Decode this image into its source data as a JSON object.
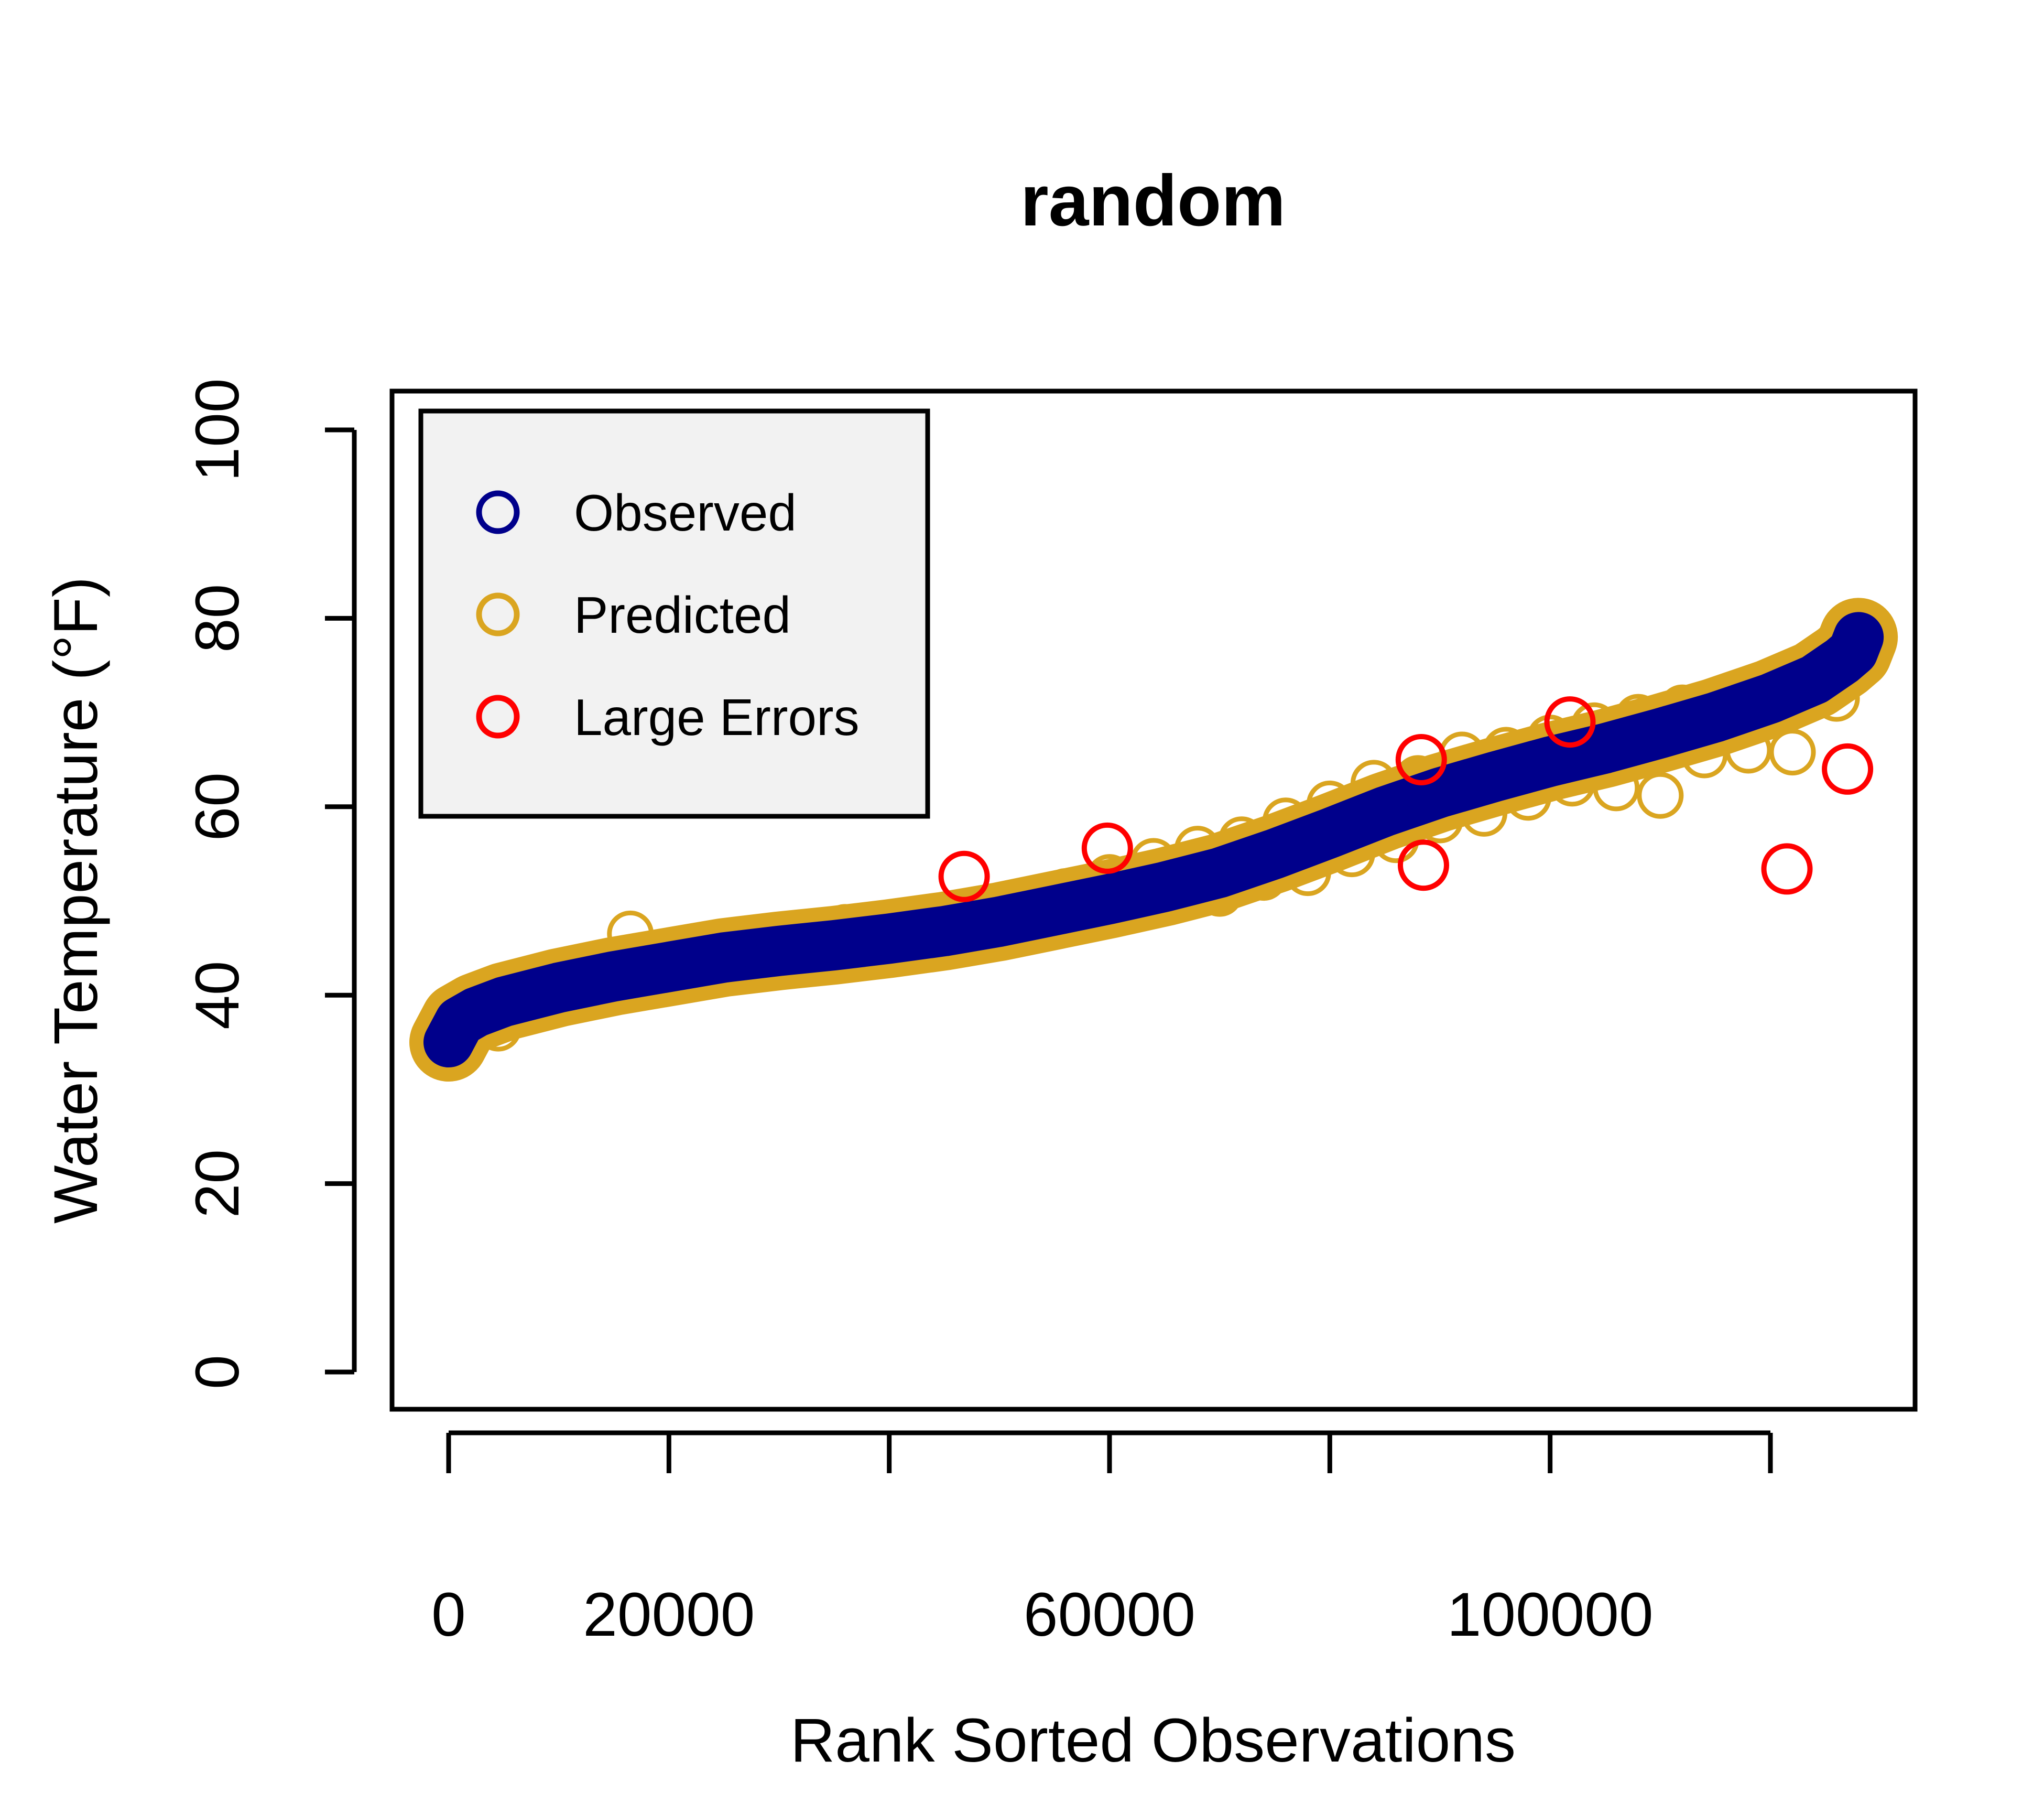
{
  "chart_data": {
    "type": "scatter",
    "title": "random",
    "xlabel": "Rank Sorted Observations",
    "ylabel": "Water Temperature (°F)",
    "xlim": [
      0,
      130000
    ],
    "ylim": [
      0,
      100
    ],
    "x_ticks": [
      0,
      20000,
      40000,
      60000,
      80000,
      100000,
      120000
    ],
    "x_tick_labels": [
      "0",
      "20000",
      "",
      "60000",
      "",
      "100000",
      ""
    ],
    "y_ticks": [
      0,
      20,
      40,
      60,
      80,
      100
    ],
    "y_tick_labels": [
      "0",
      "20",
      "40",
      "60",
      "80",
      "100"
    ],
    "grid": false,
    "legend_position": "top-left",
    "colors": {
      "observed": "#00008B",
      "predicted": "#DAA520",
      "large_errors": "#FF0000"
    },
    "series": [
      {
        "name": "Observed",
        "marker": "filled-circle-line",
        "points": [
          [
            0,
            35
          ],
          [
            1000,
            37.2
          ],
          [
            2500,
            38.2
          ],
          [
            5000,
            39.3
          ],
          [
            10000,
            40.8
          ],
          [
            15000,
            42.0
          ],
          [
            20000,
            43.0
          ],
          [
            25000,
            44.0
          ],
          [
            30000,
            44.7
          ],
          [
            35000,
            45.3
          ],
          [
            40000,
            46.0
          ],
          [
            45000,
            46.8
          ],
          [
            50000,
            47.8
          ],
          [
            55000,
            49.0
          ],
          [
            60000,
            50.2
          ],
          [
            65000,
            51.5
          ],
          [
            70000,
            53.0
          ],
          [
            75000,
            55.0
          ],
          [
            80000,
            57.2
          ],
          [
            85000,
            59.5
          ],
          [
            90000,
            61.5
          ],
          [
            95000,
            63.2
          ],
          [
            100000,
            64.8
          ],
          [
            105000,
            66.2
          ],
          [
            110000,
            67.8
          ],
          [
            115000,
            69.5
          ],
          [
            120000,
            71.5
          ],
          [
            124000,
            73.5
          ],
          [
            126500,
            75.5
          ],
          [
            127500,
            76.5
          ],
          [
            128000,
            78
          ]
        ]
      },
      {
        "name": "Predicted",
        "marker": "open-circle",
        "points": [
          [
            300,
            38.0
          ],
          [
            1500,
            38.8
          ],
          [
            3000,
            39.5
          ],
          [
            4500,
            36.5
          ],
          [
            6000,
            40.8
          ],
          [
            8000,
            41.0
          ],
          [
            9000,
            42.2
          ],
          [
            11000,
            40.6
          ],
          [
            13000,
            42.8
          ],
          [
            15000,
            41.2
          ],
          [
            16500,
            46.5
          ],
          [
            18000,
            42.4
          ],
          [
            20000,
            44.3
          ],
          [
            22000,
            42.6
          ],
          [
            24000,
            45.2
          ],
          [
            26000,
            43.4
          ],
          [
            28000,
            46.0
          ],
          [
            30000,
            43.6
          ],
          [
            32000,
            46.2
          ],
          [
            34000,
            43.8
          ],
          [
            36000,
            47.2
          ],
          [
            38000,
            44.3
          ],
          [
            40000,
            47.0
          ],
          [
            42000,
            45.0
          ],
          [
            44000,
            48.0
          ],
          [
            46000,
            45.7
          ],
          [
            48000,
            48.8
          ],
          [
            50000,
            46.6
          ],
          [
            52000,
            50.0
          ],
          [
            54000,
            47.2
          ],
          [
            56000,
            51.0
          ],
          [
            58000,
            48.3
          ],
          [
            60000,
            52.5
          ],
          [
            62000,
            49.0
          ],
          [
            64000,
            54.2
          ],
          [
            66000,
            50.2
          ],
          [
            68000,
            55.5
          ],
          [
            70000,
            50.8
          ],
          [
            72000,
            56.5
          ],
          [
            74000,
            52.5
          ],
          [
            76000,
            58.5
          ],
          [
            78000,
            53.0
          ],
          [
            80000,
            60.3
          ],
          [
            82000,
            55.0
          ],
          [
            84000,
            62.5
          ],
          [
            86000,
            56.5
          ],
          [
            88000,
            63.0
          ],
          [
            90000,
            58.6
          ],
          [
            92000,
            65.5
          ],
          [
            94000,
            59.3
          ],
          [
            96000,
            66.0
          ],
          [
            98000,
            61.0
          ],
          [
            100000,
            67.3
          ],
          [
            102000,
            62.5
          ],
          [
            104000,
            68.6
          ],
          [
            106000,
            62.0
          ],
          [
            108000,
            69.5
          ],
          [
            110000,
            61.2
          ],
          [
            112000,
            70.5
          ],
          [
            114000,
            65.5
          ],
          [
            116000,
            71.3
          ],
          [
            118000,
            66.0
          ],
          [
            120000,
            72.5
          ],
          [
            122000,
            65.8
          ],
          [
            124000,
            74.5
          ],
          [
            126000,
            71.5
          ],
          [
            127500,
            76.5
          ]
        ]
      },
      {
        "name": "Large Errors",
        "marker": "open-circle",
        "points": [
          [
            46800,
            52.6
          ],
          [
            59800,
            55.6
          ],
          [
            88300,
            65.0
          ],
          [
            88500,
            53.8
          ],
          [
            101800,
            69.0
          ],
          [
            121500,
            53.4
          ],
          [
            127000,
            64.0
          ]
        ]
      }
    ]
  }
}
